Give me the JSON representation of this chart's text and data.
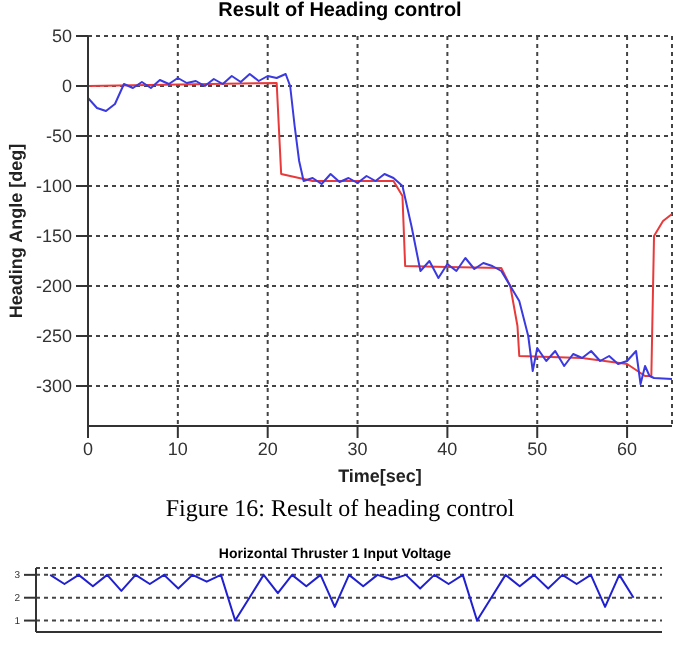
{
  "chart_data": [
    {
      "type": "line",
      "title": "Result of Heading control",
      "xlabel": "Time[sec]",
      "ylabel": "Heading Angle [deg]",
      "annotations": [
        "Figure 16: Result of heading control"
      ],
      "xlim": [
        0,
        65
      ],
      "xticks": [
        0,
        10,
        20,
        30,
        40,
        50,
        60
      ],
      "ylim": [
        -340,
        50
      ],
      "yticks": [
        50,
        0,
        -50,
        -100,
        -150,
        -200,
        -250,
        -300
      ],
      "grid": true,
      "series": [
        {
          "color": "#e83a3a",
          "x": [
            0,
            21,
            21.5,
            25,
            34,
            35,
            35.3,
            40,
            46,
            47,
            47.8,
            48,
            55,
            60,
            62,
            62.7,
            63,
            64,
            65
          ],
          "values": [
            0,
            3,
            -88,
            -95,
            -95,
            -110,
            -180,
            -181,
            -182,
            -200,
            -240,
            -270,
            -272,
            -278,
            -290,
            -290,
            -150,
            -135,
            -128
          ]
        },
        {
          "color": "#3a3ae0",
          "x": [
            0,
            1,
            2,
            3,
            4,
            5,
            6,
            7,
            8,
            9,
            10,
            11,
            12,
            13,
            14,
            15,
            16,
            17,
            18,
            19,
            20,
            21,
            22,
            22.5,
            23,
            23.5,
            24,
            25,
            26,
            27,
            28,
            29,
            30,
            31,
            32,
            33,
            34,
            35,
            36,
            37,
            38,
            39,
            40,
            41,
            42,
            43,
            44,
            45,
            46,
            47,
            48,
            49,
            49.5,
            50,
            51,
            52,
            53,
            54,
            55,
            56,
            57,
            58,
            59,
            60,
            61,
            61.5,
            62,
            62.5,
            63,
            65
          ],
          "values": [
            -12,
            -22,
            -25,
            -18,
            2,
            -2,
            4,
            -2,
            6,
            2,
            8,
            3,
            5,
            0,
            7,
            2,
            10,
            4,
            12,
            5,
            10,
            8,
            12,
            0,
            -40,
            -75,
            -95,
            -92,
            -98,
            -88,
            -96,
            -92,
            -97,
            -90,
            -95,
            -88,
            -92,
            -100,
            -140,
            -185,
            -175,
            -192,
            -178,
            -185,
            -172,
            -183,
            -177,
            -180,
            -185,
            -200,
            -215,
            -250,
            -285,
            -262,
            -275,
            -265,
            -280,
            -268,
            -272,
            -265,
            -275,
            -270,
            -278,
            -275,
            -265,
            -298,
            -280,
            -290,
            -292,
            -293
          ]
        }
      ]
    },
    {
      "type": "line",
      "title": "Horizontal Thruster 1 Input Voltage",
      "tick_labels": "y",
      "ylim": [
        0.5,
        3.3
      ],
      "yticks": [
        1,
        2,
        3
      ],
      "grid": "y",
      "categories": [
        null,
        null,
        null,
        null,
        null,
        null,
        null,
        null,
        null,
        null,
        null,
        null,
        null,
        null,
        null,
        null,
        null,
        null,
        null,
        null,
        null,
        null,
        null,
        null,
        null,
        null,
        null,
        null,
        null,
        null,
        null,
        null,
        null,
        null,
        null,
        null,
        null,
        null,
        null,
        null,
        null,
        null,
        null,
        null,
        null
      ],
      "series": [
        {
          "color": "#2020d0",
          "values": [
            null,
            3,
            2.6,
            3,
            2.5,
            3,
            2.3,
            3,
            2.6,
            3,
            2.4,
            3,
            2.7,
            3,
            1,
            2,
            3,
            2.2,
            3,
            2.5,
            3,
            1.6,
            3,
            2.5,
            3,
            2.8,
            3,
            2.4,
            3,
            2.6,
            3,
            1,
            2,
            3,
            2.5,
            3,
            2.4,
            3,
            2.6,
            3,
            1.6,
            3,
            2,
            null,
            null
          ]
        }
      ]
    }
  ]
}
